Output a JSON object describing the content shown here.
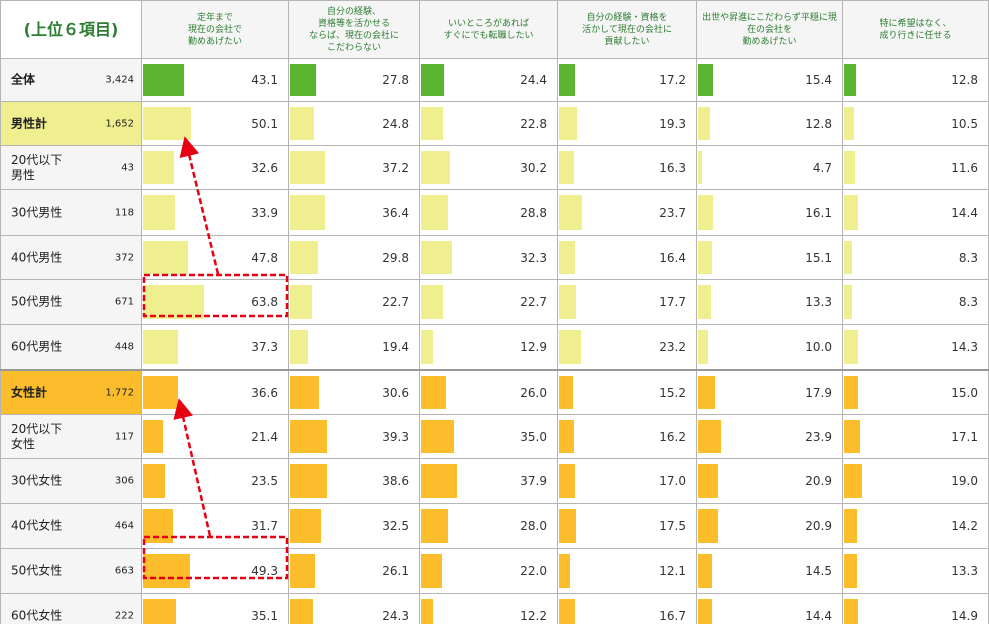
{
  "chart_data": {
    "type": "table",
    "title": "(上位６項目)",
    "columns": [
      "定年まで\n現在の会社で\n勤めあげたい",
      "自分の経験、\n資格等を活かせる\nならば、現在の会社に\nこだわらない",
      "いいところがあれば\nすぐにでも転職したい",
      "自分の経験・資格を\n活かして現在の会社に\n貢献したい",
      "出世や昇進にこだわらず平穏に現\n在の会社を\n勤めあげたい",
      "特に希望はなく、\n成り行きに任せる"
    ],
    "rows": [
      {
        "label": "全体",
        "n": "3,424",
        "group": "total",
        "values": [
          43.1,
          27.8,
          24.4,
          17.2,
          15.4,
          12.8
        ]
      },
      {
        "label": "男性計",
        "n": "1,652",
        "group": "male_total",
        "values": [
          50.1,
          24.8,
          22.8,
          19.3,
          12.8,
          10.5
        ]
      },
      {
        "label": "20代以下\n男性",
        "n": "43",
        "group": "male",
        "values": [
          32.6,
          37.2,
          30.2,
          16.3,
          4.7,
          11.6
        ]
      },
      {
        "label": "30代男性",
        "n": "118",
        "group": "male",
        "values": [
          33.9,
          36.4,
          28.8,
          23.7,
          16.1,
          14.4
        ]
      },
      {
        "label": "40代男性",
        "n": "372",
        "group": "male",
        "values": [
          47.8,
          29.8,
          32.3,
          16.4,
          15.1,
          8.3
        ]
      },
      {
        "label": "50代男性",
        "n": "671",
        "group": "male",
        "values": [
          63.8,
          22.7,
          22.7,
          17.7,
          13.3,
          8.3
        ]
      },
      {
        "label": "60代男性",
        "n": "448",
        "group": "male",
        "values": [
          37.3,
          19.4,
          12.9,
          23.2,
          10.0,
          14.3
        ]
      },
      {
        "label": "女性計",
        "n": "1,772",
        "group": "female_total",
        "values": [
          36.6,
          30.6,
          26.0,
          15.2,
          17.9,
          15.0
        ]
      },
      {
        "label": "20代以下\n女性",
        "n": "117",
        "group": "female",
        "values": [
          21.4,
          39.3,
          35.0,
          16.2,
          23.9,
          17.1
        ]
      },
      {
        "label": "30代女性",
        "n": "306",
        "group": "female",
        "values": [
          23.5,
          38.6,
          37.9,
          17.0,
          20.9,
          19.0
        ]
      },
      {
        "label": "40代女性",
        "n": "464",
        "group": "female",
        "values": [
          31.7,
          32.5,
          28.0,
          17.5,
          20.9,
          14.2
        ]
      },
      {
        "label": "50代女性",
        "n": "663",
        "group": "female",
        "values": [
          49.3,
          26.1,
          22.0,
          12.1,
          14.5,
          13.3
        ]
      },
      {
        "label": "60代女性",
        "n": "222",
        "group": "female",
        "values": [
          35.1,
          24.3,
          12.2,
          16.7,
          14.4,
          14.9
        ]
      }
    ],
    "colors": {
      "total": "#5cb531",
      "male": "#f0ef90",
      "male_total": "#f0ef90",
      "female": "#fbbd2c",
      "female_total": "#fbbd2c",
      "highlight": "#e60012"
    },
    "annotations": [
      "50代男性 定年まで勤めあげたい highlighted, arrow to 20代以下男性",
      "50代女性 定年まで勤めあげたい highlighted, arrow to 20代以下女性"
    ]
  }
}
